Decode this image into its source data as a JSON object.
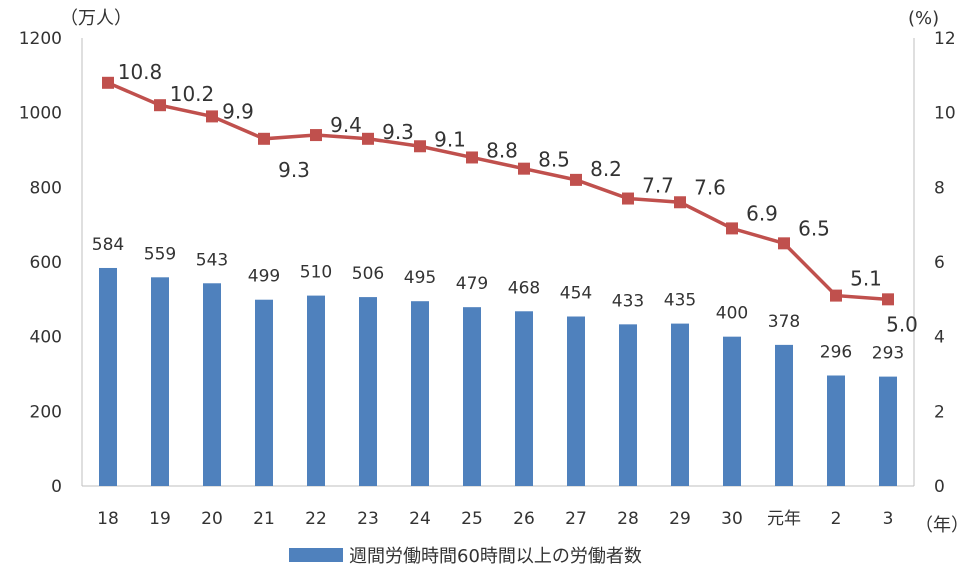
{
  "chart_data": {
    "type": "bar+line",
    "categories": [
      "18",
      "19",
      "20",
      "21",
      "22",
      "23",
      "24",
      "25",
      "26",
      "27",
      "28",
      "29",
      "30",
      "元年",
      "2",
      "3"
    ],
    "bar_series": {
      "name": "週間労働時間60時間以上の労働者数",
      "values": [
        584,
        559,
        543,
        499,
        510,
        506,
        495,
        479,
        468,
        454,
        433,
        435,
        400,
        378,
        296,
        293
      ],
      "color": "#4f81bd"
    },
    "line_series": {
      "values": [
        10.8,
        10.2,
        9.9,
        9.3,
        9.4,
        9.3,
        9.1,
        8.8,
        8.5,
        8.2,
        7.7,
        7.6,
        6.9,
        6.5,
        5.1,
        5.0
      ],
      "color": "#c0504d",
      "label_text": [
        "10.8",
        "10.2",
        "9.9",
        "9.3",
        "9.4",
        "9.3",
        "9.1",
        "8.8",
        "8.5",
        "8.2",
        "7.7",
        "7.6",
        "6.9",
        "6.5",
        "5.1",
        "5.0"
      ]
    },
    "left_axis": {
      "unit": "（万人）",
      "min": 0,
      "max": 1200,
      "ticks": [
        "0",
        "200",
        "400",
        "600",
        "800",
        "1000",
        "1200"
      ]
    },
    "right_axis": {
      "unit": "(%)",
      "min": 0,
      "max": 12,
      "ticks": [
        "0",
        "2",
        "4",
        "6",
        "8",
        "10",
        "12"
      ]
    },
    "x_axis": {
      "unit": "（年）"
    },
    "legend": {
      "position": "bottom",
      "label": "週間労働時間60時間以上の労働者数"
    },
    "grid": false
  }
}
